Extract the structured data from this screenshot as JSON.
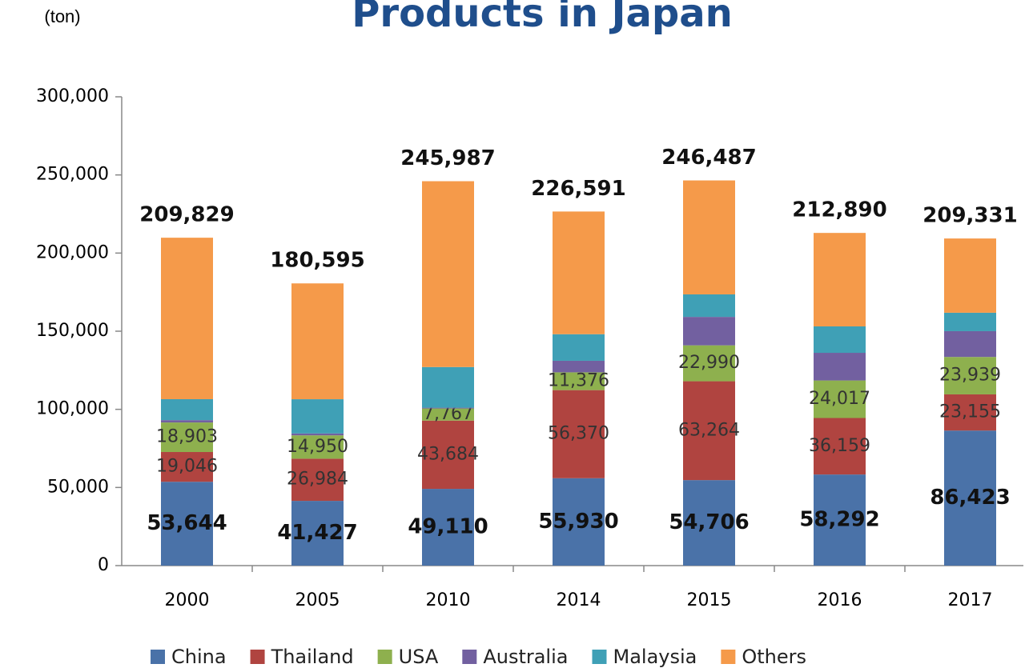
{
  "chart_data": {
    "type": "stacked_bar",
    "title": "Products in Japan",
    "y_unit": "(ton)",
    "categories": [
      "2000",
      "2005",
      "2010",
      "2014",
      "2015",
      "2016",
      "2017"
    ],
    "series": [
      {
        "name": "China",
        "color": "#4a72a8",
        "values": [
          53644,
          41427,
          49110,
          55930,
          54706,
          58292,
          86423
        ],
        "value_labels": [
          "53,644",
          "41,427",
          "49,110",
          "55,930",
          "54,706",
          "58,292",
          "86,423"
        ]
      },
      {
        "name": "Thailand",
        "color": "#b04440",
        "values": [
          19046,
          26984,
          43684,
          56370,
          63264,
          36159,
          23155
        ],
        "value_labels": [
          "19,046",
          "26,984",
          "43,684",
          "56,370",
          "63,264",
          "36,159",
          "23,155"
        ]
      },
      {
        "name": "USA",
        "color": "#8eb04e",
        "values": [
          18903,
          14950,
          7767,
          11376,
          22990,
          24017,
          23939
        ],
        "value_labels": [
          "18,903",
          "14,950",
          "7,767",
          "11,376",
          "22,990",
          "24,017",
          "23,939"
        ]
      },
      {
        "name": "Australia",
        "color": "#7260a0",
        "values": [
          1500,
          1200,
          500,
          7400,
          18200,
          17700,
          16500
        ]
      },
      {
        "name": "Malaysia",
        "color": "#3fa0b6",
        "values": [
          13400,
          21900,
          26000,
          17000,
          14400,
          16900,
          11800
        ]
      },
      {
        "name": "Others",
        "color": "#f59a4a",
        "values": [
          103336,
          74134,
          118926,
          78515,
          72927,
          59822,
          47514
        ]
      }
    ],
    "totals": [
      209829,
      180595,
      245987,
      226591,
      246487,
      212890,
      209331
    ],
    "total_labels": [
      "209,829",
      "180,595",
      "245,987",
      "226,591",
      "246,487",
      "212,890",
      "209,331"
    ],
    "ylim": [
      0,
      300000
    ],
    "yticks": [
      0,
      {
        "value": 50000,
        "label": "50,000"
      },
      {
        "value": 100000,
        "label": "100,000"
      },
      {
        "value": 150000,
        "label": "150,000"
      },
      {
        "value": 200000,
        "label": "200,000"
      },
      {
        "value": 250000,
        "label": "250,000"
      },
      {
        "value": 300000,
        "label": "300,000"
      }
    ],
    "legend": "bottom"
  }
}
